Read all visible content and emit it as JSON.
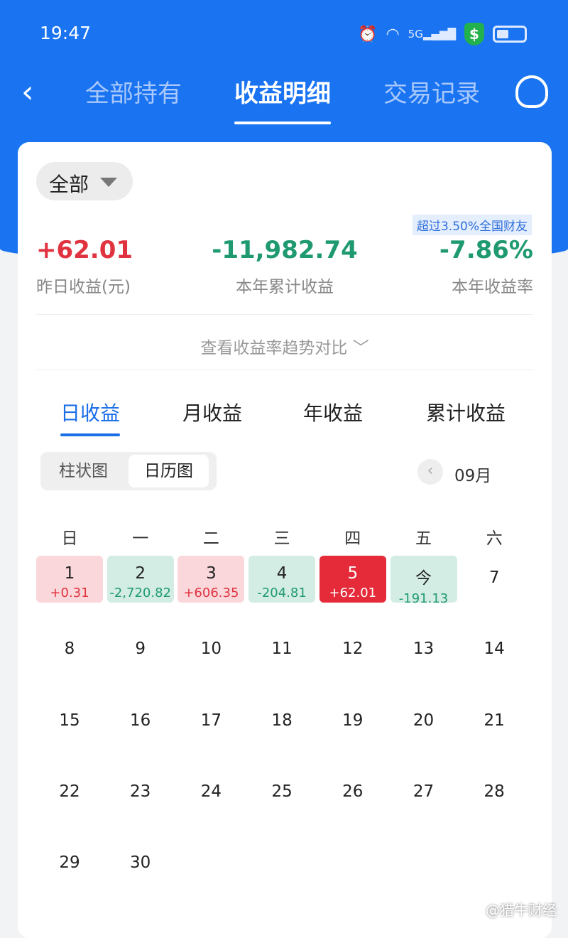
{
  "status": {
    "time": "19:47",
    "network": "5G",
    "icons": [
      "alarm-icon",
      "wifi-icon",
      "signal-icon",
      "shield-dollar-icon",
      "battery-icon"
    ]
  },
  "nav": {
    "tabs": [
      "全部持有",
      "收益明细",
      "交易记录"
    ],
    "active": 1
  },
  "filter": {
    "label": "全部"
  },
  "badge": "超过3.50%全国财友",
  "stats": [
    {
      "value": "+62.01",
      "label": "昨日收益(元)",
      "color": "#e0323f"
    },
    {
      "value": "-11,982.74",
      "label": "本年累计收益",
      "color": "#1f9a70"
    },
    {
      "value": "-7.86%",
      "label": "本年收益率",
      "color": "#1f9a70"
    }
  ],
  "trend_link": "查看收益率趋势对比",
  "period_tabs": [
    "日收益",
    "月收益",
    "年收益",
    "累计收益"
  ],
  "view_toggle": [
    "柱状图",
    "日历图"
  ],
  "month": "09月",
  "weekdays": [
    "日",
    "一",
    "二",
    "三",
    "四",
    "五",
    "六"
  ],
  "days": [
    {
      "d": "1",
      "amt": "+0.31",
      "type": "pos"
    },
    {
      "d": "2",
      "amt": "-2,720.82",
      "type": "neg"
    },
    {
      "d": "3",
      "amt": "+606.35",
      "type": "pos"
    },
    {
      "d": "4",
      "amt": "-204.81",
      "type": "neg"
    },
    {
      "d": "5",
      "amt": "+62.01",
      "type": "sel"
    },
    {
      "d": "今",
      "amt": "-191.13",
      "type": "neg"
    },
    {
      "d": "7"
    },
    {
      "d": "8"
    },
    {
      "d": "9"
    },
    {
      "d": "10"
    },
    {
      "d": "11"
    },
    {
      "d": "12"
    },
    {
      "d": "13"
    },
    {
      "d": "14"
    },
    {
      "d": "15"
    },
    {
      "d": "16"
    },
    {
      "d": "17"
    },
    {
      "d": "18"
    },
    {
      "d": "19"
    },
    {
      "d": "20"
    },
    {
      "d": "21"
    },
    {
      "d": "22"
    },
    {
      "d": "23"
    },
    {
      "d": "24"
    },
    {
      "d": "25"
    },
    {
      "d": "26"
    },
    {
      "d": "27"
    },
    {
      "d": "28"
    },
    {
      "d": "29"
    },
    {
      "d": "30"
    }
  ],
  "watermark": "@猎牛财经"
}
